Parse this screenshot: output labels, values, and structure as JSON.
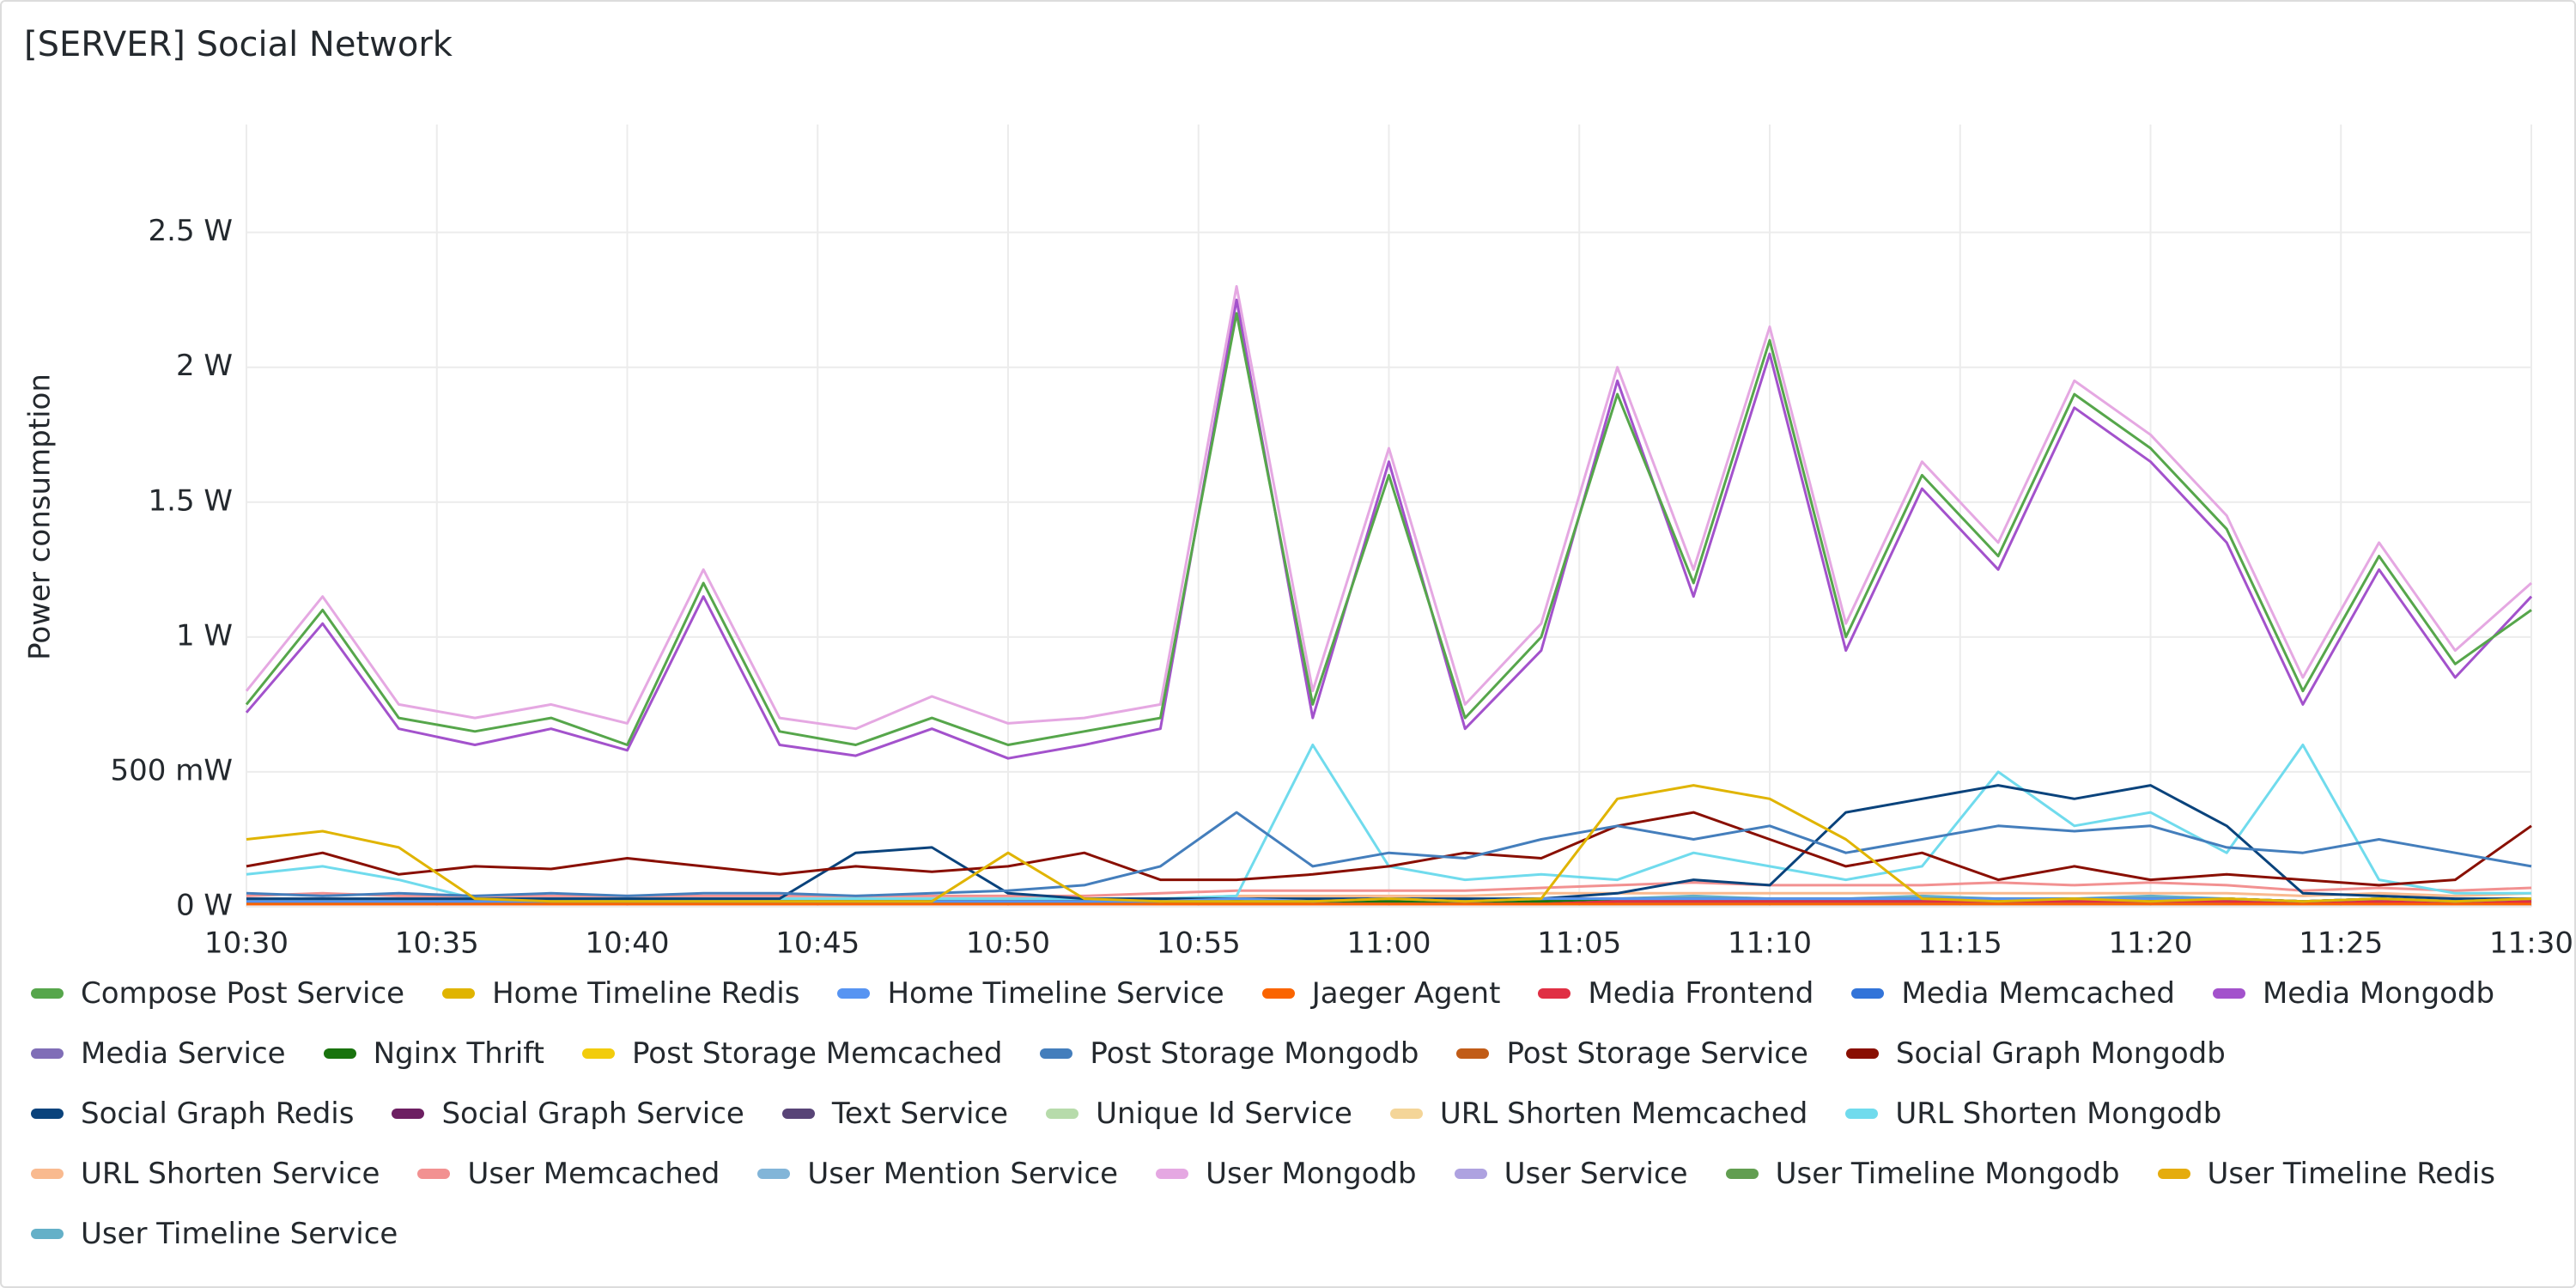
{
  "chart_data": {
    "type": "line",
    "title": "[SERVER] Social Network",
    "y_label": "Power consumption",
    "x": [
      "10:30",
      "10:32",
      "10:34",
      "10:36",
      "10:38",
      "10:40",
      "10:42",
      "10:44",
      "10:46",
      "10:48",
      "10:50",
      "10:52",
      "10:54",
      "10:56",
      "10:58",
      "11:00",
      "11:02",
      "11:04",
      "11:06",
      "11:08",
      "11:10",
      "11:12",
      "11:14",
      "11:16",
      "11:18",
      "11:20",
      "11:22",
      "11:24",
      "11:26",
      "11:28",
      "11:30"
    ],
    "xlim": [
      "10:30",
      "11:30"
    ],
    "xticks": [
      "10:30",
      "10:35",
      "10:40",
      "10:45",
      "10:50",
      "10:55",
      "11:00",
      "11:05",
      "11:10",
      "11:15",
      "11:20",
      "11:25",
      "11:30"
    ],
    "ylim": [
      0,
      2.9
    ],
    "yticks": [
      {
        "value": 0,
        "label": "0 W"
      },
      {
        "value": 0.5,
        "label": "500 mW"
      },
      {
        "value": 1,
        "label": "1 W"
      },
      {
        "value": 1.5,
        "label": "1.5 W"
      },
      {
        "value": 2,
        "label": "2 W"
      },
      {
        "value": 2.5,
        "label": "2.5 W"
      }
    ],
    "grid": true,
    "series": [
      {
        "name": "Compose Post Service",
        "color": "#56a64b",
        "values": [
          0.75,
          1.1,
          0.7,
          0.65,
          0.7,
          0.6,
          1.2,
          0.65,
          0.6,
          0.7,
          0.6,
          0.65,
          0.7,
          2.2,
          0.75,
          1.6,
          0.7,
          1.0,
          1.9,
          1.2,
          2.1,
          1.0,
          1.6,
          1.3,
          1.9,
          1.7,
          1.4,
          0.8,
          1.3,
          0.9,
          1.1
        ]
      },
      {
        "name": "Home Timeline Redis",
        "color": "#e0b400",
        "values": [
          0.25,
          0.28,
          0.22,
          0.03,
          0.02,
          0.02,
          0.02,
          0.02,
          0.02,
          0.02,
          0.2,
          0.03,
          0.02,
          0.02,
          0.02,
          0.03,
          0.02,
          0.03,
          0.4,
          0.45,
          0.4,
          0.25,
          0.03,
          0.02,
          0.03,
          0.02,
          0.03,
          0.02,
          0.03,
          0.02,
          0.03
        ]
      },
      {
        "name": "Home Timeline Service",
        "color": "#5794f2",
        "values": [
          0.02,
          0.02,
          0.02,
          0.02,
          0.02,
          0.02,
          0.02,
          0.02,
          0.02,
          0.02,
          0.02,
          0.02,
          0.02,
          0.03,
          0.02,
          0.03,
          0.02,
          0.03,
          0.03,
          0.03,
          0.03,
          0.03,
          0.03,
          0.03,
          0.03,
          0.03,
          0.03,
          0.02,
          0.03,
          0.02,
          0.03
        ]
      },
      {
        "name": "Jaeger Agent",
        "color": "#fa6400",
        "values": [
          0.01,
          0.01,
          0.01,
          0.01,
          0.01,
          0.01,
          0.01,
          0.01,
          0.01,
          0.01,
          0.01,
          0.01,
          0.01,
          0.01,
          0.01,
          0.01,
          0.01,
          0.01,
          0.01,
          0.01,
          0.01,
          0.01,
          0.01,
          0.01,
          0.01,
          0.01,
          0.01,
          0.01,
          0.01,
          0.01,
          0.01
        ]
      },
      {
        "name": "Media Frontend",
        "color": "#e02f44",
        "values": [
          0.01,
          0.01,
          0.01,
          0.01,
          0.01,
          0.01,
          0.01,
          0.01,
          0.01,
          0.01,
          0.01,
          0.01,
          0.01,
          0.01,
          0.01,
          0.01,
          0.01,
          0.01,
          0.02,
          0.02,
          0.02,
          0.02,
          0.02,
          0.02,
          0.02,
          0.02,
          0.02,
          0.01,
          0.02,
          0.01,
          0.02
        ]
      },
      {
        "name": "Media Memcached",
        "color": "#3274d9",
        "values": [
          0.01,
          0.01,
          0.01,
          0.01,
          0.01,
          0.01,
          0.01,
          0.01,
          0.01,
          0.01,
          0.01,
          0.01,
          0.01,
          0.01,
          0.01,
          0.01,
          0.01,
          0.01,
          0.01,
          0.01,
          0.01,
          0.01,
          0.01,
          0.01,
          0.01,
          0.01,
          0.01,
          0.01,
          0.01,
          0.01,
          0.01
        ]
      },
      {
        "name": "Media Mongodb",
        "color": "#a352cc",
        "values": [
          0.72,
          1.05,
          0.66,
          0.6,
          0.66,
          0.58,
          1.15,
          0.6,
          0.56,
          0.66,
          0.55,
          0.6,
          0.66,
          2.25,
          0.7,
          1.65,
          0.66,
          0.95,
          1.95,
          1.15,
          2.05,
          0.95,
          1.55,
          1.25,
          1.85,
          1.65,
          1.35,
          0.75,
          1.25,
          0.85,
          1.15
        ]
      },
      {
        "name": "Media Service",
        "color": "#806eb7",
        "values": [
          0.01,
          0.01,
          0.01,
          0.01,
          0.01,
          0.01,
          0.01,
          0.01,
          0.01,
          0.01,
          0.01,
          0.01,
          0.01,
          0.01,
          0.01,
          0.01,
          0.01,
          0.01,
          0.01,
          0.01,
          0.01,
          0.01,
          0.01,
          0.01,
          0.01,
          0.01,
          0.01,
          0.01,
          0.01,
          0.01,
          0.01
        ]
      },
      {
        "name": "Nginx Thrift",
        "color": "#19730e",
        "values": [
          0.02,
          0.02,
          0.02,
          0.02,
          0.02,
          0.02,
          0.02,
          0.02,
          0.02,
          0.02,
          0.02,
          0.02,
          0.02,
          0.02,
          0.02,
          0.02,
          0.02,
          0.02,
          0.03,
          0.03,
          0.03,
          0.03,
          0.03,
          0.03,
          0.03,
          0.03,
          0.03,
          0.02,
          0.03,
          0.02,
          0.03
        ]
      },
      {
        "name": "Post Storage Memcached",
        "color": "#f2cc0c",
        "values": [
          0.01,
          0.01,
          0.01,
          0.01,
          0.01,
          0.01,
          0.01,
          0.01,
          0.01,
          0.01,
          0.01,
          0.01,
          0.01,
          0.01,
          0.01,
          0.01,
          0.01,
          0.01,
          0.01,
          0.01,
          0.01,
          0.01,
          0.01,
          0.01,
          0.01,
          0.01,
          0.01,
          0.01,
          0.01,
          0.01,
          0.01
        ]
      },
      {
        "name": "Post Storage Mongodb",
        "color": "#447ebc",
        "values": [
          0.05,
          0.04,
          0.05,
          0.04,
          0.05,
          0.04,
          0.05,
          0.05,
          0.04,
          0.05,
          0.06,
          0.08,
          0.15,
          0.35,
          0.15,
          0.2,
          0.18,
          0.25,
          0.3,
          0.25,
          0.3,
          0.2,
          0.25,
          0.3,
          0.28,
          0.3,
          0.22,
          0.2,
          0.25,
          0.2,
          0.15
        ]
      },
      {
        "name": "Post Storage Service",
        "color": "#c15c17",
        "values": [
          0.02,
          0.02,
          0.02,
          0.02,
          0.02,
          0.02,
          0.02,
          0.02,
          0.02,
          0.02,
          0.02,
          0.02,
          0.02,
          0.03,
          0.02,
          0.03,
          0.02,
          0.03,
          0.03,
          0.03,
          0.03,
          0.03,
          0.03,
          0.03,
          0.03,
          0.03,
          0.03,
          0.02,
          0.03,
          0.02,
          0.03
        ]
      },
      {
        "name": "Social Graph Mongodb",
        "color": "#890f02",
        "values": [
          0.15,
          0.2,
          0.12,
          0.15,
          0.14,
          0.18,
          0.15,
          0.12,
          0.15,
          0.13,
          0.15,
          0.2,
          0.1,
          0.1,
          0.12,
          0.15,
          0.2,
          0.18,
          0.3,
          0.35,
          0.25,
          0.15,
          0.2,
          0.1,
          0.15,
          0.1,
          0.12,
          0.1,
          0.08,
          0.1,
          0.3
        ]
      },
      {
        "name": "Social Graph Redis",
        "color": "#0a437c",
        "values": [
          0.03,
          0.03,
          0.03,
          0.03,
          0.03,
          0.03,
          0.03,
          0.03,
          0.2,
          0.22,
          0.05,
          0.03,
          0.03,
          0.03,
          0.03,
          0.03,
          0.03,
          0.03,
          0.05,
          0.1,
          0.08,
          0.35,
          0.4,
          0.45,
          0.4,
          0.45,
          0.3,
          0.05,
          0.04,
          0.03,
          0.03
        ]
      },
      {
        "name": "Social Graph Service",
        "color": "#6d1f62",
        "values": [
          0.01,
          0.01,
          0.01,
          0.01,
          0.01,
          0.01,
          0.01,
          0.01,
          0.01,
          0.01,
          0.01,
          0.01,
          0.01,
          0.01,
          0.01,
          0.01,
          0.01,
          0.01,
          0.02,
          0.02,
          0.02,
          0.02,
          0.02,
          0.02,
          0.02,
          0.02,
          0.02,
          0.01,
          0.02,
          0.01,
          0.02
        ]
      },
      {
        "name": "Text Service",
        "color": "#584477",
        "values": [
          0.01,
          0.01,
          0.01,
          0.01,
          0.01,
          0.01,
          0.01,
          0.01,
          0.01,
          0.01,
          0.01,
          0.01,
          0.01,
          0.01,
          0.01,
          0.01,
          0.01,
          0.01,
          0.01,
          0.01,
          0.01,
          0.01,
          0.01,
          0.01,
          0.01,
          0.01,
          0.01,
          0.01,
          0.01,
          0.01,
          0.01
        ]
      },
      {
        "name": "Unique Id Service",
        "color": "#b7dbab",
        "values": [
          0.01,
          0.01,
          0.01,
          0.01,
          0.01,
          0.01,
          0.01,
          0.01,
          0.01,
          0.01,
          0.01,
          0.01,
          0.01,
          0.01,
          0.01,
          0.01,
          0.01,
          0.01,
          0.01,
          0.01,
          0.01,
          0.01,
          0.01,
          0.01,
          0.01,
          0.01,
          0.01,
          0.01,
          0.01,
          0.01,
          0.01
        ]
      },
      {
        "name": "URL Shorten Memcached",
        "color": "#f4d598",
        "values": [
          0.01,
          0.01,
          0.01,
          0.01,
          0.01,
          0.01,
          0.01,
          0.01,
          0.01,
          0.01,
          0.01,
          0.01,
          0.01,
          0.01,
          0.01,
          0.01,
          0.01,
          0.01,
          0.01,
          0.01,
          0.01,
          0.01,
          0.01,
          0.01,
          0.01,
          0.01,
          0.01,
          0.01,
          0.01,
          0.01,
          0.01
        ]
      },
      {
        "name": "URL Shorten Mongodb",
        "color": "#70dbed",
        "values": [
          0.12,
          0.15,
          0.1,
          0.03,
          0.03,
          0.03,
          0.03,
          0.03,
          0.03,
          0.03,
          0.03,
          0.03,
          0.03,
          0.04,
          0.6,
          0.15,
          0.1,
          0.12,
          0.1,
          0.2,
          0.15,
          0.1,
          0.15,
          0.5,
          0.3,
          0.35,
          0.2,
          0.6,
          0.1,
          0.05,
          0.05
        ]
      },
      {
        "name": "URL Shorten Service",
        "color": "#f9ba8f",
        "values": [
          0.03,
          0.03,
          0.03,
          0.03,
          0.03,
          0.03,
          0.03,
          0.03,
          0.03,
          0.03,
          0.03,
          0.03,
          0.03,
          0.04,
          0.04,
          0.04,
          0.04,
          0.05,
          0.05,
          0.05,
          0.05,
          0.05,
          0.05,
          0.05,
          0.05,
          0.05,
          0.05,
          0.04,
          0.05,
          0.04,
          0.05
        ]
      },
      {
        "name": "User Memcached",
        "color": "#f29191",
        "values": [
          0.04,
          0.05,
          0.04,
          0.04,
          0.04,
          0.04,
          0.04,
          0.04,
          0.04,
          0.04,
          0.04,
          0.04,
          0.05,
          0.06,
          0.06,
          0.06,
          0.06,
          0.07,
          0.08,
          0.09,
          0.08,
          0.08,
          0.08,
          0.09,
          0.08,
          0.09,
          0.08,
          0.06,
          0.07,
          0.06,
          0.07
        ]
      },
      {
        "name": "User Mention Service",
        "color": "#82b5d8",
        "values": [
          0.02,
          0.02,
          0.02,
          0.02,
          0.02,
          0.02,
          0.02,
          0.02,
          0.02,
          0.02,
          0.02,
          0.02,
          0.02,
          0.02,
          0.02,
          0.02,
          0.02,
          0.02,
          0.03,
          0.03,
          0.03,
          0.03,
          0.03,
          0.03,
          0.03,
          0.03,
          0.03,
          0.02,
          0.03,
          0.02,
          0.03
        ]
      },
      {
        "name": "User Mongodb",
        "color": "#e5a8e2",
        "values": [
          0.8,
          1.15,
          0.75,
          0.7,
          0.75,
          0.68,
          1.25,
          0.7,
          0.66,
          0.78,
          0.68,
          0.7,
          0.75,
          2.3,
          0.8,
          1.7,
          0.75,
          1.05,
          2.0,
          1.25,
          2.15,
          1.05,
          1.65,
          1.35,
          1.95,
          1.75,
          1.45,
          0.85,
          1.35,
          0.95,
          1.2
        ]
      },
      {
        "name": "User Service",
        "color": "#aea2e0",
        "values": [
          0.01,
          0.01,
          0.01,
          0.01,
          0.01,
          0.01,
          0.01,
          0.01,
          0.01,
          0.01,
          0.01,
          0.01,
          0.01,
          0.01,
          0.01,
          0.01,
          0.01,
          0.01,
          0.01,
          0.01,
          0.01,
          0.01,
          0.01,
          0.01,
          0.01,
          0.01,
          0.01,
          0.01,
          0.01,
          0.01,
          0.01
        ]
      },
      {
        "name": "User Timeline Mongodb",
        "color": "#629e51",
        "values": [
          0.02,
          0.02,
          0.02,
          0.02,
          0.02,
          0.02,
          0.02,
          0.02,
          0.02,
          0.02,
          0.02,
          0.02,
          0.02,
          0.03,
          0.02,
          0.03,
          0.02,
          0.03,
          0.03,
          0.03,
          0.03,
          0.03,
          0.03,
          0.03,
          0.03,
          0.03,
          0.03,
          0.02,
          0.03,
          0.02,
          0.03
        ]
      },
      {
        "name": "User Timeline Redis",
        "color": "#e5ac0e",
        "values": [
          0.02,
          0.02,
          0.02,
          0.02,
          0.02,
          0.02,
          0.02,
          0.02,
          0.02,
          0.02,
          0.02,
          0.02,
          0.02,
          0.02,
          0.02,
          0.02,
          0.02,
          0.02,
          0.02,
          0.02,
          0.02,
          0.02,
          0.02,
          0.02,
          0.02,
          0.02,
          0.02,
          0.02,
          0.02,
          0.02,
          0.02
        ]
      },
      {
        "name": "User Timeline Service",
        "color": "#64b0c8",
        "values": [
          0.02,
          0.02,
          0.02,
          0.02,
          0.02,
          0.02,
          0.02,
          0.02,
          0.02,
          0.02,
          0.02,
          0.02,
          0.02,
          0.03,
          0.02,
          0.03,
          0.02,
          0.03,
          0.03,
          0.04,
          0.03,
          0.03,
          0.04,
          0.03,
          0.03,
          0.04,
          0.03,
          0.02,
          0.03,
          0.02,
          0.03
        ]
      }
    ]
  }
}
